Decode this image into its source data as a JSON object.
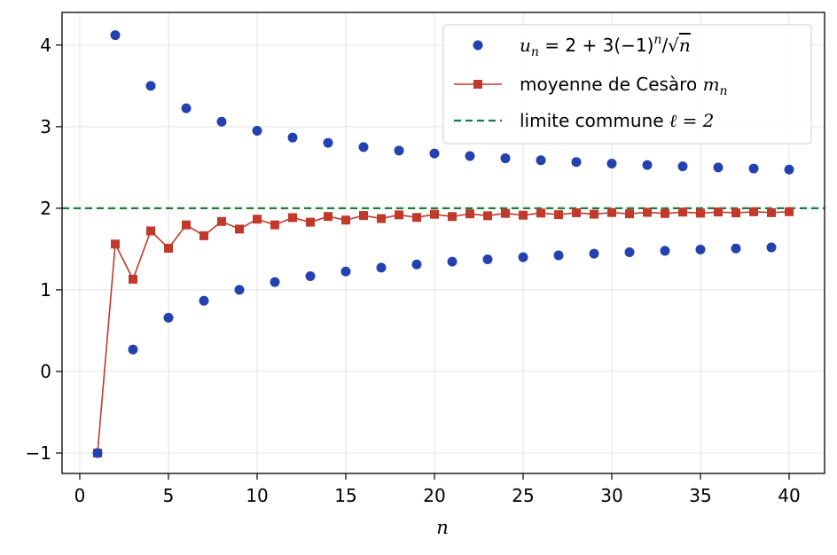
{
  "chart_data": {
    "type": "line",
    "title": "",
    "xlabel": "n",
    "ylabel": "",
    "xlim": [
      -1,
      42
    ],
    "ylim": [
      -1.25,
      4.4
    ],
    "grid": true,
    "legend_position": "top-right",
    "x_ticks": [
      0,
      5,
      10,
      15,
      20,
      25,
      30,
      35,
      40
    ],
    "y_ticks": [
      -1,
      0,
      1,
      2,
      3,
      4
    ],
    "x_tick_labels": [
      "0",
      "5",
      "10",
      "15",
      "20",
      "25",
      "30",
      "35",
      "40"
    ],
    "y_tick_labels": [
      "−1",
      "0",
      "1",
      "2",
      "3",
      "4"
    ],
    "series": [
      {
        "name": "u_n = 2 + 3(−1)^n/√n",
        "style": "markers",
        "marker": "circle",
        "color": "#2341b0",
        "x": [
          1,
          2,
          3,
          4,
          5,
          6,
          7,
          8,
          9,
          10,
          11,
          12,
          13,
          14,
          15,
          16,
          17,
          18,
          19,
          20,
          21,
          22,
          23,
          24,
          25,
          26,
          27,
          28,
          29,
          30,
          31,
          32,
          33,
          34,
          35,
          36,
          37,
          38,
          39,
          40
        ],
        "y": [
          -1.0,
          4.121,
          0.268,
          3.5,
          0.658,
          3.225,
          0.866,
          3.061,
          1.0,
          2.949,
          1.095,
          2.866,
          1.168,
          2.802,
          1.225,
          2.75,
          1.272,
          2.707,
          1.312,
          2.671,
          1.345,
          2.64,
          1.374,
          2.612,
          1.4,
          2.588,
          1.423,
          2.567,
          1.443,
          2.548,
          1.461,
          2.53,
          1.478,
          2.514,
          1.493,
          2.5,
          1.507,
          2.487,
          1.52,
          2.474
        ]
      },
      {
        "name": "moyenne de Cesàro m_n",
        "style": "line-markers",
        "marker": "square",
        "color": "#c0392b",
        "x": [
          1,
          2,
          3,
          4,
          5,
          6,
          7,
          8,
          9,
          10,
          11,
          12,
          13,
          14,
          15,
          16,
          17,
          18,
          19,
          20,
          21,
          22,
          23,
          24,
          25,
          26,
          27,
          28,
          29,
          30,
          31,
          32,
          33,
          34,
          35,
          36,
          37,
          38,
          39,
          40
        ],
        "y": [
          -1.0,
          1.561,
          1.13,
          1.722,
          1.51,
          1.796,
          1.663,
          1.838,
          1.745,
          1.866,
          1.796,
          1.885,
          1.829,
          1.899,
          1.855,
          1.911,
          1.873,
          1.919,
          1.887,
          1.926,
          1.898,
          1.932,
          1.908,
          1.937,
          1.915,
          1.941,
          1.922,
          1.945,
          1.927,
          1.948,
          1.932,
          1.95,
          1.936,
          1.953,
          1.94,
          1.954,
          1.943,
          1.957,
          1.946,
          1.958
        ]
      },
      {
        "name": "limite commune ℓ = 2",
        "style": "dashed-hline",
        "color": "#1e7b3c",
        "y": 2
      }
    ]
  },
  "legend": {
    "entry1": {
      "prefix": "u",
      "sub": "n",
      "mid": " = 2 + 3(−1)",
      "sup": "n",
      "slash": "/√",
      "tail": "n"
    },
    "entry2": {
      "text": "moyenne de Cesàro ",
      "var": "m",
      "sub": "n"
    },
    "entry3": {
      "text": "limite commune ",
      "math": "ℓ = 2"
    }
  }
}
